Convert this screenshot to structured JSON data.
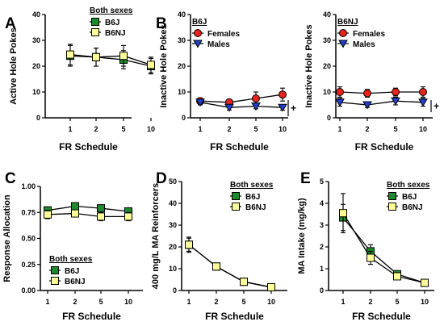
{
  "figure": {
    "colors": {
      "B6J": "#1e8a2e",
      "B6NJ": "#ffff99",
      "Females": "#e8231c",
      "Males": "#1f3fcf",
      "line": "#000000"
    }
  },
  "chart_data": [
    {
      "panel": "A",
      "type": "line",
      "categories": [
        "1",
        "2",
        "5",
        "10"
      ],
      "ylabel": "Active Hole Pokes",
      "xlabel": "FR Schedule",
      "ylim": [
        0,
        40
      ],
      "yticks": [
        0,
        10,
        20,
        30,
        40
      ],
      "legend_title": "Both sexes",
      "legend_position": "top-right",
      "series": [
        {
          "name": "B6J",
          "marker": "square",
          "color": "#1e8a2e",
          "values": [
            24,
            23.5,
            22.5,
            20
          ],
          "errors": [
            4,
            3.5,
            3.5,
            3
          ]
        },
        {
          "name": "B6NJ",
          "marker": "square",
          "color": "#ffff99",
          "values": [
            24.5,
            23.5,
            24,
            20.5
          ],
          "errors": [
            4,
            3.5,
            4,
            3
          ]
        }
      ]
    },
    {
      "panel": "B",
      "type": "line",
      "categories": [
        "1",
        "2",
        "5",
        "10"
      ],
      "ylabel": "Inactive Hole Pokes",
      "xlabel": "FR Schedule",
      "ylim": [
        0,
        40
      ],
      "yticks": [
        0,
        10,
        20,
        30,
        40
      ],
      "legend_title": "B6J",
      "legend_position": "top-left",
      "annotation": "+",
      "series": [
        {
          "name": "Females",
          "marker": "circle",
          "color": "#e8231c",
          "values": [
            6.5,
            6,
            7.5,
            9
          ],
          "errors": [
            1,
            1,
            2.5,
            2.5
          ]
        },
        {
          "name": "Males",
          "marker": "triangle",
          "color": "#1f3fcf",
          "values": [
            6,
            4,
            4.5,
            4
          ],
          "errors": [
            1,
            1,
            1,
            1
          ]
        }
      ]
    },
    {
      "panel": "B-right",
      "type": "line",
      "categories": [
        "1",
        "2",
        "5",
        "10"
      ],
      "ylabel": "Inactive Hole Pokes",
      "xlabel": "FR Schedule",
      "ylim": [
        0,
        40
      ],
      "yticks": [
        0,
        10,
        20,
        30,
        40
      ],
      "legend_title": "B6NJ",
      "legend_position": "top-left",
      "annotation": "+",
      "series": [
        {
          "name": "Females",
          "marker": "circle",
          "color": "#e8231c",
          "values": [
            10,
            9.5,
            10,
            10
          ],
          "errors": [
            2,
            1.5,
            1.5,
            2
          ]
        },
        {
          "name": "Males",
          "marker": "triangle",
          "color": "#1f3fcf",
          "values": [
            6,
            5,
            6.5,
            6
          ],
          "errors": [
            1.5,
            1,
            1.5,
            1.5
          ]
        }
      ]
    },
    {
      "panel": "C",
      "type": "line",
      "categories": [
        "1",
        "2",
        "5",
        "10"
      ],
      "ylabel": "Response Allocation",
      "xlabel": "FR Schedule",
      "ylim": [
        0,
        1
      ],
      "yticks": [
        "0.00",
        "0.25",
        "0.50",
        "0.75",
        "1.00"
      ],
      "legend_title": "Both sexes",
      "legend_position": "bottom-left",
      "series": [
        {
          "name": "B6J",
          "marker": "square",
          "color": "#1e8a2e",
          "values": [
            0.77,
            0.81,
            0.79,
            0.76
          ],
          "errors": [
            0.03,
            0.03,
            0.03,
            0.03
          ]
        },
        {
          "name": "B6NJ",
          "marker": "square",
          "color": "#ffff99",
          "values": [
            0.73,
            0.74,
            0.71,
            0.71
          ],
          "errors": [
            0.04,
            0.03,
            0.04,
            0.04
          ]
        }
      ]
    },
    {
      "panel": "D",
      "type": "line",
      "categories": [
        "1",
        "2",
        "5",
        "10"
      ],
      "ylabel": "400 mg/L MA Reinforcers",
      "xlabel": "FR Schedule",
      "ylim": [
        0,
        50
      ],
      "yticks": [
        0,
        10,
        20,
        30,
        40,
        50
      ],
      "legend_title": "Both sexes",
      "legend_position": "top-right",
      "series": [
        {
          "name": "B6J",
          "marker": "square",
          "color": "#1e8a2e",
          "values": [
            21,
            11,
            4,
            1.5
          ],
          "errors": [
            3,
            1.5,
            0.8,
            1
          ]
        },
        {
          "name": "B6NJ",
          "marker": "square",
          "color": "#ffff99",
          "values": [
            21,
            11,
            4,
            1.5
          ],
          "errors": [
            3.5,
            1.5,
            0.8,
            1
          ]
        }
      ]
    },
    {
      "panel": "E",
      "type": "line",
      "categories": [
        "1",
        "2",
        "5",
        "10"
      ],
      "ylabel": "MA Intake (mg/kg)",
      "xlabel": "FR Schedule",
      "ylim": [
        0,
        5
      ],
      "yticks": [
        0,
        1,
        2,
        3,
        4,
        5
      ],
      "legend_title": "Both sexes",
      "legend_position": "top-right",
      "series": [
        {
          "name": "B6J",
          "marker": "square",
          "color": "#1e8a2e",
          "values": [
            3.35,
            1.8,
            0.75,
            0.35
          ],
          "errors": [
            0.6,
            0.3,
            0.1,
            0.1
          ]
        },
        {
          "name": "B6NJ",
          "marker": "square",
          "color": "#ffff99",
          "values": [
            3.55,
            1.5,
            0.65,
            0.35
          ],
          "errors": [
            0.9,
            0.3,
            0.1,
            0.1
          ]
        }
      ]
    }
  ]
}
